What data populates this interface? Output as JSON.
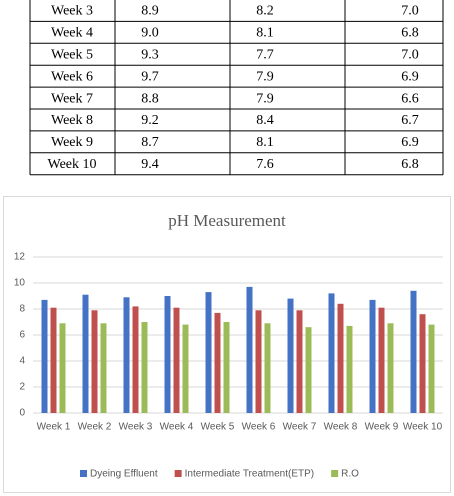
{
  "table": {
    "rows": [
      [
        "Week 3",
        "8.9",
        "8.2",
        "7.0"
      ],
      [
        "Week 4",
        "9.0",
        "8.1",
        "6.8"
      ],
      [
        "Week 5",
        "9.3",
        "7.7",
        "7.0"
      ],
      [
        "Week 6",
        "9.7",
        "7.9",
        "6.9"
      ],
      [
        "Week 7",
        "8.8",
        "7.9",
        "6.6"
      ],
      [
        "Week 8",
        "9.2",
        "8.4",
        "6.7"
      ],
      [
        "Week 9",
        "8.7",
        "8.1",
        "6.9"
      ],
      [
        "Week 10",
        "9.4",
        "7.6",
        "6.8"
      ]
    ]
  },
  "chart_data": {
    "type": "bar",
    "title": "pH Measurement",
    "categories": [
      "Week 1",
      "Week 2",
      "Week 3",
      "Week 4",
      "Week 5",
      "Week 6",
      "Week 7",
      "Week 8",
      "Week 9",
      "Week 10"
    ],
    "series": [
      {
        "name": "Dyeing Effluent",
        "color": "#4472c4",
        "values": [
          8.7,
          9.1,
          8.9,
          9.0,
          9.3,
          9.7,
          8.8,
          9.2,
          8.7,
          9.4
        ]
      },
      {
        "name": "Intermediate Treatment(ETP)",
        "color": "#c0504d",
        "values": [
          8.1,
          7.9,
          8.2,
          8.1,
          7.7,
          7.9,
          7.9,
          8.4,
          8.1,
          7.6
        ]
      },
      {
        "name": "R.O",
        "color": "#9bbb59",
        "values": [
          6.9,
          6.9,
          7.0,
          6.8,
          7.0,
          6.9,
          6.6,
          6.7,
          6.9,
          6.8
        ]
      }
    ],
    "ylim": [
      0,
      12
    ],
    "yticks": [
      0,
      2,
      4,
      6,
      8,
      10,
      12
    ],
    "grid": true,
    "legend": "bottom"
  }
}
